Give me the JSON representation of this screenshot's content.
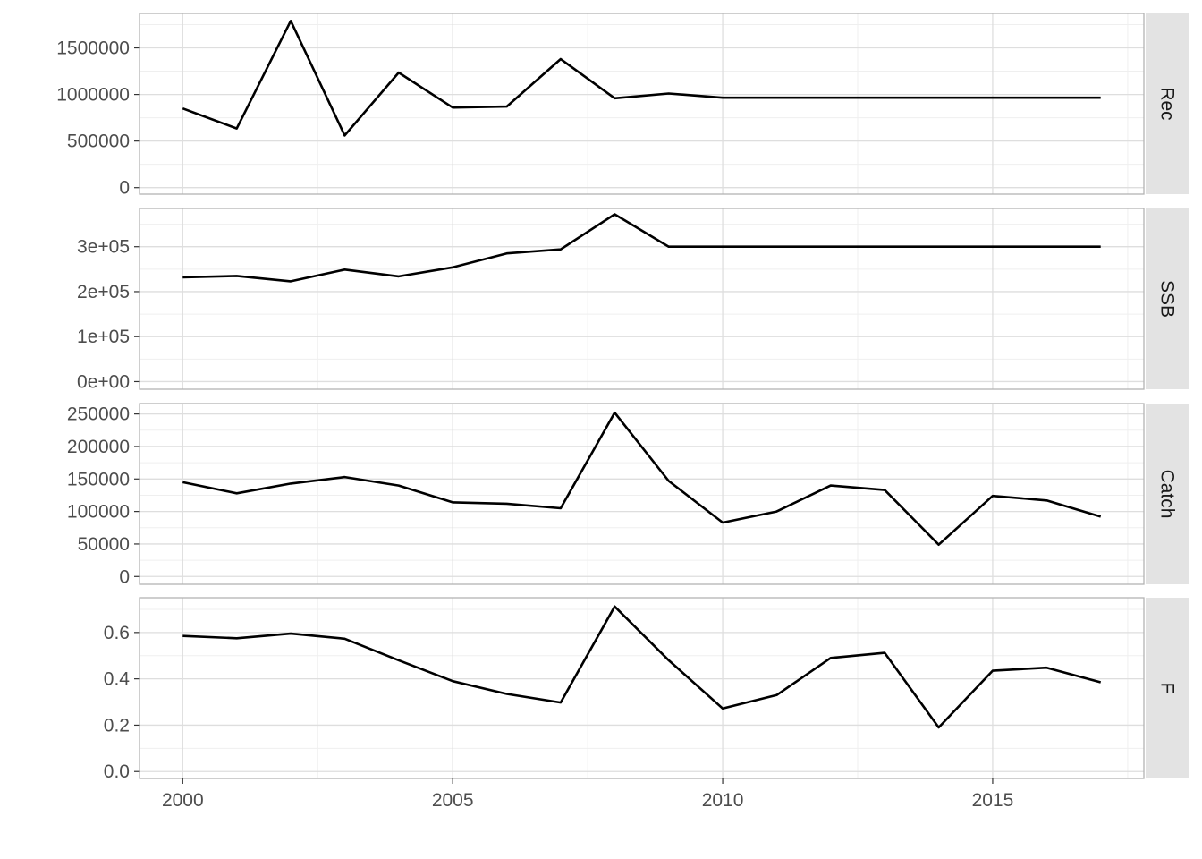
{
  "chart_data": {
    "type": "line",
    "layout": "faceted-vertical",
    "shared_x": true,
    "grid": true,
    "colors": {
      "line": "#000000",
      "strip": "#e3e3e3",
      "panel_border": "#b3b3b3",
      "grid_major": "#dedede",
      "grid_minor": "#efefef"
    },
    "x": [
      2000,
      2001,
      2002,
      2003,
      2004,
      2005,
      2006,
      2007,
      2008,
      2009,
      2010,
      2011,
      2012,
      2013,
      2014,
      2015,
      2016,
      2017
    ],
    "xlim": [
      1999.2,
      2017.8
    ],
    "xticks": [
      2000,
      2005,
      2010,
      2015
    ],
    "xtick_labels": [
      "2000",
      "2005",
      "2010",
      "2015"
    ],
    "facets": [
      {
        "name": "Rec",
        "values": [
          850000,
          635000,
          1790000,
          560000,
          1235000,
          860000,
          870000,
          1380000,
          960000,
          1010000,
          965000,
          965000,
          965000,
          965000,
          965000,
          965000,
          965000,
          965000
        ],
        "ylim": [
          -70000,
          1870000
        ],
        "yticks": [
          0,
          500000,
          1000000,
          1500000
        ],
        "ytick_labels": [
          "0",
          "500000",
          "1000000",
          "1500000"
        ]
      },
      {
        "name": "SSB",
        "values": [
          232000,
          235000,
          223000,
          249000,
          234000,
          254000,
          285000,
          294000,
          372000,
          300000,
          300000,
          300000,
          300000,
          300000,
          300000,
          300000,
          300000,
          300000
        ],
        "ylim": [
          -17000,
          385000
        ],
        "yticks": [
          0,
          100000,
          200000,
          300000
        ],
        "ytick_labels": [
          "0e+00",
          "1e+05",
          "2e+05",
          "3e+05"
        ]
      },
      {
        "name": "Catch",
        "values": [
          145000,
          128000,
          143000,
          153000,
          140000,
          114000,
          112000,
          105000,
          252000,
          147000,
          83000,
          100000,
          140000,
          133000,
          49000,
          124000,
          117000,
          92000
        ],
        "ylim": [
          -12000,
          266000
        ],
        "yticks": [
          0,
          50000,
          100000,
          150000,
          200000,
          250000
        ],
        "ytick_labels": [
          "0",
          "50000",
          "100000",
          "150000",
          "200000",
          "250000"
        ]
      },
      {
        "name": "F",
        "values": [
          0.585,
          0.575,
          0.595,
          0.573,
          0.48,
          0.39,
          0.335,
          0.298,
          0.712,
          0.48,
          0.272,
          0.33,
          0.49,
          0.512,
          0.19,
          0.435,
          0.448,
          0.385
        ],
        "ylim": [
          -0.03,
          0.75
        ],
        "yticks": [
          0,
          0.2,
          0.4,
          0.6
        ],
        "ytick_labels": [
          "0.0",
          "0.2",
          "0.4",
          "0.6"
        ]
      }
    ]
  }
}
